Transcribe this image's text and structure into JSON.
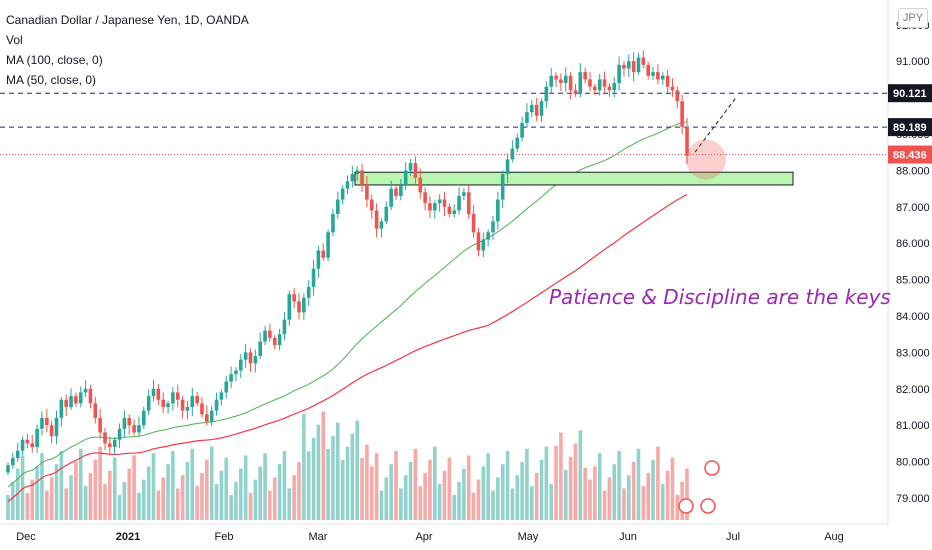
{
  "legend": {
    "symbol": "Canadian Dollar / Japanese Yen, 1D, OANDA",
    "volume": "Vol",
    "ma100": "MA (100, close, 0)",
    "ma50": "MA (50, close, 0)"
  },
  "currency_badge": "JPY",
  "annotation": "Patience & Discipline are the keys",
  "chart_data": {
    "type": "candlestick",
    "y_axis": {
      "range": [
        78.5,
        92.2
      ],
      "ticks": [
        "79.000",
        "80.000",
        "81.000",
        "82.000",
        "83.000",
        "84.000",
        "85.000",
        "86.000",
        "87.000",
        "88.000",
        "89.000",
        "90.000",
        "91.000",
        "92.000"
      ]
    },
    "x_axis": {
      "labels": [
        "Dec",
        "2021",
        "Feb",
        "Mar",
        "Apr",
        "May",
        "Jun",
        "Jul",
        "Aug"
      ]
    },
    "price_labels": [
      {
        "value": "90.121",
        "color": "#131722",
        "line": "dashed-navy"
      },
      {
        "value": "89.189",
        "color": "#131722",
        "line": "dashed-navy"
      },
      {
        "value": "88.436",
        "color": "#ef5350",
        "line": "dotted-red"
      }
    ],
    "support_zone": {
      "from": 87.6,
      "to": 87.95
    },
    "projection": {
      "from": 88.5,
      "to": 90.0
    },
    "colors": {
      "up": "#26a69a",
      "down": "#ef5350",
      "ma50": "#4caf50",
      "ma100": "#f23645",
      "zone": "#b9f6b0"
    },
    "closes": [
      79.9,
      80.1,
      80.3,
      80.6,
      80.5,
      80.4,
      80.9,
      81.2,
      81.0,
      80.7,
      81.2,
      81.7,
      81.5,
      81.8,
      81.6,
      81.9,
      82.0,
      81.6,
      81.2,
      80.8,
      80.5,
      80.4,
      80.6,
      80.9,
      81.2,
      81.0,
      80.8,
      81.0,
      81.4,
      81.8,
      82.0,
      81.7,
      81.5,
      81.6,
      81.9,
      81.7,
      81.4,
      81.5,
      81.8,
      81.6,
      81.3,
      81.1,
      81.4,
      81.7,
      81.9,
      82.2,
      82.4,
      82.5,
      82.8,
      83.0,
      82.7,
      82.9,
      83.3,
      83.6,
      83.4,
      83.2,
      83.5,
      83.9,
      84.6,
      84.4,
      84.1,
      84.5,
      84.8,
      85.3,
      85.8,
      85.6,
      86.3,
      86.8,
      87.2,
      87.5,
      87.7,
      87.9,
      88.0,
      87.6,
      87.2,
      86.9,
      86.4,
      86.6,
      87.0,
      87.5,
      87.3,
      87.6,
      88.0,
      88.2,
      87.8,
      87.4,
      87.1,
      86.9,
      87.1,
      87.2,
      87.0,
      86.8,
      86.9,
      87.3,
      87.4,
      86.8,
      86.3,
      85.8,
      86.1,
      86.3,
      86.6,
      87.2,
      87.9,
      88.3,
      88.6,
      88.9,
      89.3,
      89.6,
      89.8,
      89.5,
      89.9,
      90.3,
      90.6,
      90.5,
      90.4,
      90.6,
      90.2,
      90.1,
      90.7,
      90.5,
      90.3,
      90.2,
      90.5,
      90.3,
      90.2,
      90.4,
      90.9,
      90.8,
      91.0,
      90.7,
      91.1,
      90.9,
      90.6,
      90.7,
      90.5,
      90.6,
      90.3,
      90.2,
      89.9,
      89.2,
      88.4
    ]
  }
}
